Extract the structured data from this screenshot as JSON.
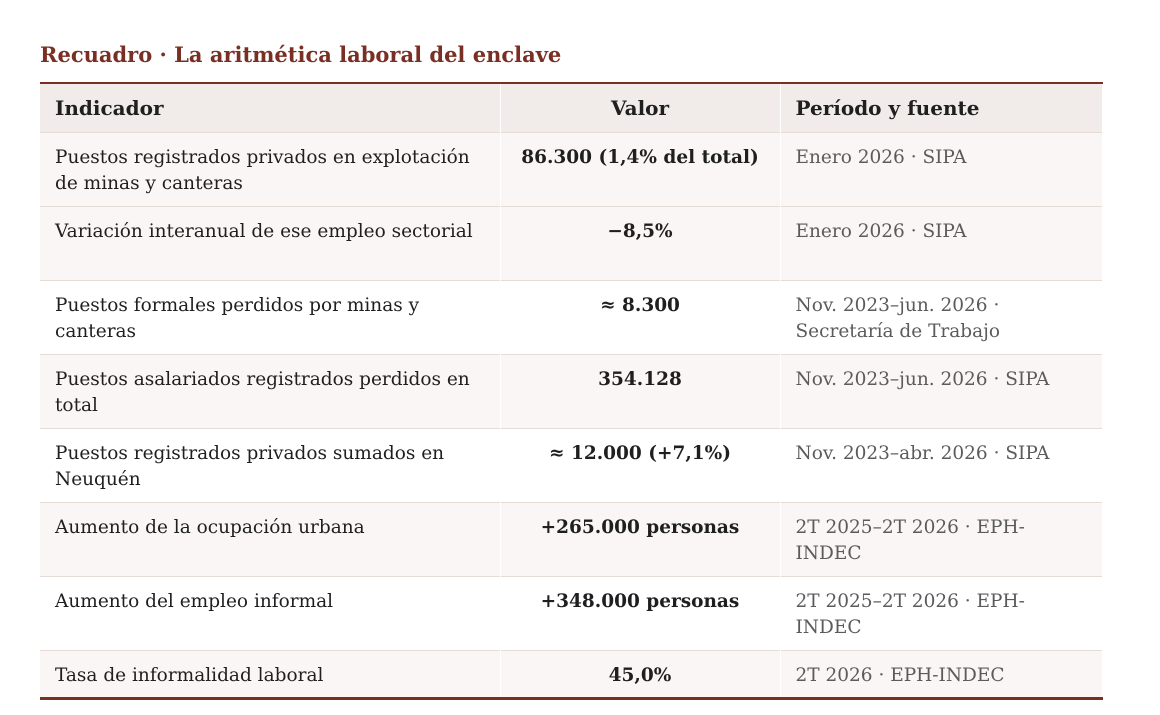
{
  "title": "Recuadro · La aritmética laboral del enclave",
  "headers": {
    "indicator": "Indicador",
    "value": "Valor",
    "source": "Período y fuente"
  },
  "rows": [
    {
      "indicator": "Puestos registrados privados en explotación de minas y canteras",
      "value": "86.300 (1,4% del total)",
      "source": "Enero 2026 · SIPA"
    },
    {
      "indicator": "Variación interanual de ese empleo sectorial",
      "value": "−8,5%",
      "source": "Enero 2026 · SIPA"
    },
    {
      "indicator": "Puestos formales perdidos por minas y canteras",
      "value": "≈ 8.300",
      "source": "Nov. 2023–jun. 2026 · Secretaría de Trabajo"
    },
    {
      "indicator": "Puestos asalariados registrados perdidos en total",
      "value": "354.128",
      "source": "Nov. 2023–jun. 2026 · SIPA"
    },
    {
      "indicator": "Puestos registrados privados sumados en Neuquén",
      "value": "≈ 12.000 (+7,1%)",
      "source": "Nov. 2023–abr. 2026 · SIPA"
    },
    {
      "indicator": "Aumento de la ocupación urbana",
      "value": "+265.000 personas",
      "source": "2T 2025–2T 2026 · EPH-INDEC"
    },
    {
      "indicator": "Aumento del empleo informal",
      "value": "+348.000 personas",
      "source": "2T 2025–2T 2026 · EPH-INDEC"
    },
    {
      "indicator": "Tasa de informalidad laboral",
      "value": "45,0%",
      "source": "2T 2026 · EPH-INDEC"
    }
  ]
}
